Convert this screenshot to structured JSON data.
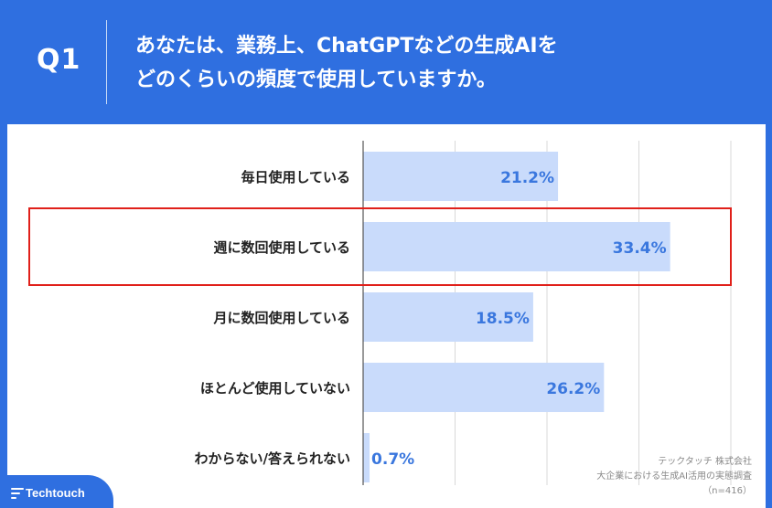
{
  "header": {
    "question_label": "Q1",
    "title_line1": "あなたは、業務上、ChatGPTなどの生成AIを",
    "title_line2": "どのくらいの頻度で使用していますか。"
  },
  "chart_data": {
    "type": "bar",
    "orientation": "horizontal",
    "categories": [
      "毎日使用している",
      "週に数回使用している",
      "月に数回使用している",
      "ほとんど使用していない",
      "わからない/答えられない"
    ],
    "values": [
      21.2,
      33.4,
      18.5,
      26.2,
      0.7
    ],
    "value_labels": [
      "21.2%",
      "33.4%",
      "18.5%",
      "26.2%",
      "0.7%"
    ],
    "xlim": [
      0,
      40
    ],
    "grid": true,
    "highlighted_category_index": 1,
    "colors": {
      "bar": "#c9dbfb",
      "label": "#3a77de",
      "highlight": "#e0201a",
      "grid": "#d8d8d8"
    }
  },
  "source": {
    "company": "テックタッチ 株式会社",
    "survey": "大企業における生成AI活用の実態調査",
    "sample": "（n=416）"
  },
  "logo": {
    "text": "Techtouch",
    "icon": "techtouch-lines-icon"
  }
}
